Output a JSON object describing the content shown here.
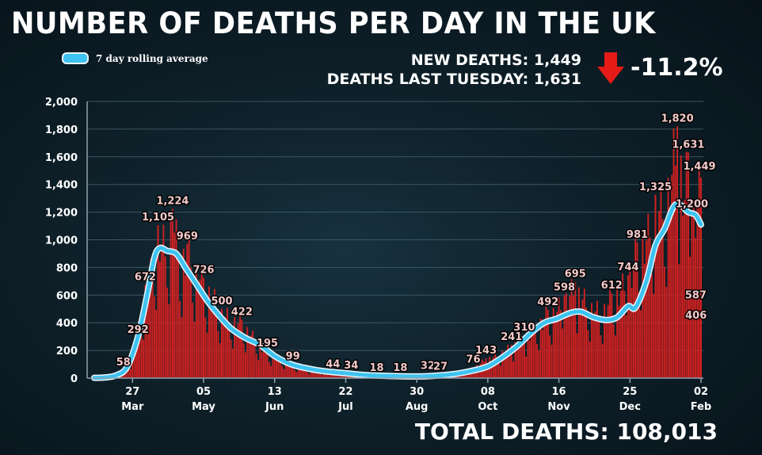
{
  "title": "NUMBER OF DEATHS PER DAY IN THE UK",
  "legend": {
    "label": "7 day rolling average"
  },
  "stats": {
    "new_deaths": "NEW DEATHS: 1,449",
    "last_tuesday": "DEATHS LAST TUESDAY: 1,631",
    "change": "-11.2%",
    "total": "TOTAL DEATHS: 108,013"
  },
  "colors": {
    "bars": "#d42020",
    "average_line": "#3ec3f0",
    "arrow": "#e41b17"
  },
  "icons": {
    "change": "down-arrow-icon"
  },
  "chart_data": {
    "type": "bar",
    "ylim": [
      0,
      2000
    ],
    "yticks": [
      "0",
      "200",
      "400",
      "600",
      "800",
      "1,000",
      "1,200",
      "1,400",
      "1,600",
      "1,800",
      "2,000"
    ],
    "grid": true,
    "xticks": [
      {
        "day": "27",
        "month": "Mar"
      },
      {
        "day": "05",
        "month": "May"
      },
      {
        "day": "13",
        "month": "Jun"
      },
      {
        "day": "22",
        "month": "Jul"
      },
      {
        "day": "30",
        "month": "Aug"
      },
      {
        "day": "08",
        "month": "Oct"
      },
      {
        "day": "16",
        "month": "Nov"
      },
      {
        "day": "25",
        "month": "Dec"
      },
      {
        "day": "02",
        "month": "Feb"
      }
    ],
    "xtick_dates": [
      "2020-03-27",
      "2020-05-05",
      "2020-06-13",
      "2020-07-22",
      "2020-08-30",
      "2020-10-08",
      "2020-11-16",
      "2020-12-25",
      "2021-02-02"
    ],
    "date_range": [
      "2020-03-06",
      "2021-02-02"
    ],
    "series": [
      {
        "kind": "daily_deaths",
        "anchors": [
          [
            "2020-03-06",
            2
          ],
          [
            "2020-03-10",
            6
          ],
          [
            "2020-03-14",
            14
          ],
          [
            "2020-03-18",
            40
          ],
          [
            "2020-03-22",
            58
          ],
          [
            "2020-03-26",
            140
          ],
          [
            "2020-03-30",
            292
          ],
          [
            "2020-04-03",
            672
          ],
          [
            "2020-04-06",
            800
          ],
          [
            "2020-04-10",
            1105
          ],
          [
            "2020-04-14",
            1000
          ],
          [
            "2020-04-18",
            1224
          ],
          [
            "2020-04-22",
            900
          ],
          [
            "2020-04-26",
            969
          ],
          [
            "2020-04-30",
            850
          ],
          [
            "2020-05-05",
            726
          ],
          [
            "2020-05-10",
            620
          ],
          [
            "2020-05-15",
            500
          ],
          [
            "2020-05-20",
            450
          ],
          [
            "2020-05-26",
            422
          ],
          [
            "2020-06-02",
            300
          ],
          [
            "2020-06-09",
            195
          ],
          [
            "2020-06-16",
            150
          ],
          [
            "2020-06-23",
            99
          ],
          [
            "2020-06-30",
            70
          ],
          [
            "2020-07-08",
            50
          ],
          [
            "2020-07-15",
            44
          ],
          [
            "2020-07-25",
            34
          ],
          [
            "2020-08-05",
            18
          ],
          [
            "2020-08-15",
            18
          ],
          [
            "2020-08-25",
            18
          ],
          [
            "2020-09-01",
            20
          ],
          [
            "2020-09-05",
            32
          ],
          [
            "2020-09-12",
            27
          ],
          [
            "2020-09-22",
            40
          ],
          [
            "2020-09-30",
            76
          ],
          [
            "2020-10-07",
            143
          ],
          [
            "2020-10-14",
            180
          ],
          [
            "2020-10-21",
            241
          ],
          [
            "2020-10-28",
            310
          ],
          [
            "2020-11-04",
            400
          ],
          [
            "2020-11-10",
            492
          ],
          [
            "2020-11-15",
            520
          ],
          [
            "2020-11-19",
            598
          ],
          [
            "2020-11-25",
            695
          ],
          [
            "2020-12-02",
            560
          ],
          [
            "2020-12-09",
            500
          ],
          [
            "2020-12-15",
            612
          ],
          [
            "2020-12-21",
            700
          ],
          [
            "2020-12-24",
            744
          ],
          [
            "2020-12-29",
            981
          ],
          [
            "2021-01-04",
            1100
          ],
          [
            "2021-01-08",
            1325
          ],
          [
            "2021-01-13",
            1300
          ],
          [
            "2021-01-20",
            1820
          ],
          [
            "2021-01-24",
            1400
          ],
          [
            "2021-01-26",
            1631
          ],
          [
            "2021-01-28",
            1200
          ],
          [
            "2021-02-02",
            1449
          ]
        ]
      },
      {
        "kind": "7_day_rolling_average",
        "name": "7 day rolling average",
        "anchors": [
          [
            "2020-03-06",
            2
          ],
          [
            "2020-03-12",
            5
          ],
          [
            "2020-03-18",
            20
          ],
          [
            "2020-03-24",
            80
          ],
          [
            "2020-03-30",
            300
          ],
          [
            "2020-04-04",
            600
          ],
          [
            "2020-04-08",
            870
          ],
          [
            "2020-04-11",
            940
          ],
          [
            "2020-04-15",
            920
          ],
          [
            "2020-04-20",
            900
          ],
          [
            "2020-04-25",
            800
          ],
          [
            "2020-05-01",
            680
          ],
          [
            "2020-05-07",
            560
          ],
          [
            "2020-05-13",
            460
          ],
          [
            "2020-05-20",
            360
          ],
          [
            "2020-05-28",
            290
          ],
          [
            "2020-06-05",
            240
          ],
          [
            "2020-06-13",
            160
          ],
          [
            "2020-06-22",
            100
          ],
          [
            "2020-07-01",
            70
          ],
          [
            "2020-07-10",
            50
          ],
          [
            "2020-07-22",
            35
          ],
          [
            "2020-08-05",
            20
          ],
          [
            "2020-08-30",
            12
          ],
          [
            "2020-09-10",
            18
          ],
          [
            "2020-09-20",
            30
          ],
          [
            "2020-09-30",
            55
          ],
          [
            "2020-10-08",
            85
          ],
          [
            "2020-10-16",
            150
          ],
          [
            "2020-10-24",
            230
          ],
          [
            "2020-11-01",
            330
          ],
          [
            "2020-11-08",
            400
          ],
          [
            "2020-11-15",
            430
          ],
          [
            "2020-11-22",
            470
          ],
          [
            "2020-11-28",
            480
          ],
          [
            "2020-12-05",
            440
          ],
          [
            "2020-12-12",
            420
          ],
          [
            "2020-12-18",
            440
          ],
          [
            "2020-12-24",
            520
          ],
          [
            "2020-12-28",
            510
          ],
          [
            "2021-01-03",
            700
          ],
          [
            "2021-01-08",
            960
          ],
          [
            "2021-01-13",
            1080
          ],
          [
            "2021-01-18",
            1240
          ],
          [
            "2021-01-22",
            1250
          ],
          [
            "2021-01-26",
            1200
          ],
          [
            "2021-01-30",
            1180
          ],
          [
            "2021-02-02",
            1110
          ]
        ]
      }
    ],
    "annotations": [
      {
        "date": "2020-03-22",
        "value": 58,
        "label": "58"
      },
      {
        "date": "2020-03-30",
        "value": 292,
        "label": "292"
      },
      {
        "date": "2020-04-03",
        "value": 672,
        "label": "672"
      },
      {
        "date": "2020-04-10",
        "value": 1105,
        "label": "1,105"
      },
      {
        "date": "2020-04-18",
        "value": 1224,
        "label": "1,224"
      },
      {
        "date": "2020-04-26",
        "value": 969,
        "label": "969"
      },
      {
        "date": "2020-05-05",
        "value": 726,
        "label": "726"
      },
      {
        "date": "2020-05-15",
        "value": 500,
        "label": "500"
      },
      {
        "date": "2020-05-26",
        "value": 422,
        "label": "422"
      },
      {
        "date": "2020-06-09",
        "value": 195,
        "label": "195"
      },
      {
        "date": "2020-06-23",
        "value": 99,
        "label": "99"
      },
      {
        "date": "2020-07-15",
        "value": 44,
        "label": "44"
      },
      {
        "date": "2020-07-25",
        "value": 34,
        "label": "34"
      },
      {
        "date": "2020-08-08",
        "value": 18,
        "label": "18"
      },
      {
        "date": "2020-08-21",
        "value": 18,
        "label": "18"
      },
      {
        "date": "2020-09-05",
        "value": 32,
        "label": "32"
      },
      {
        "date": "2020-09-12",
        "value": 27,
        "label": "27"
      },
      {
        "date": "2020-09-30",
        "value": 76,
        "label": "76"
      },
      {
        "date": "2020-10-07",
        "value": 143,
        "label": "143"
      },
      {
        "date": "2020-10-21",
        "value": 241,
        "label": "241"
      },
      {
        "date": "2020-10-28",
        "value": 310,
        "label": "310"
      },
      {
        "date": "2020-11-10",
        "value": 492,
        "label": "492"
      },
      {
        "date": "2020-11-19",
        "value": 598,
        "label": "598"
      },
      {
        "date": "2020-11-25",
        "value": 695,
        "label": "695"
      },
      {
        "date": "2020-12-15",
        "value": 612,
        "label": "612"
      },
      {
        "date": "2020-12-24",
        "value": 744,
        "label": "744"
      },
      {
        "date": "2020-12-29",
        "value": 981,
        "label": "981"
      },
      {
        "date": "2021-01-08",
        "value": 1325,
        "label": "1,325"
      },
      {
        "date": "2021-01-20",
        "value": 1820,
        "label": "1,820"
      },
      {
        "date": "2021-01-26",
        "value": 1631,
        "label": "1,631"
      },
      {
        "date": "2021-01-28",
        "value": 1200,
        "label": "1,200"
      },
      {
        "date": "2021-02-02",
        "value": 1449,
        "label": "1,449"
      },
      {
        "date": "2021-01-31",
        "value": 587,
        "label": "587"
      },
      {
        "date": "2021-02-01",
        "value": 406,
        "label": "406"
      }
    ]
  }
}
